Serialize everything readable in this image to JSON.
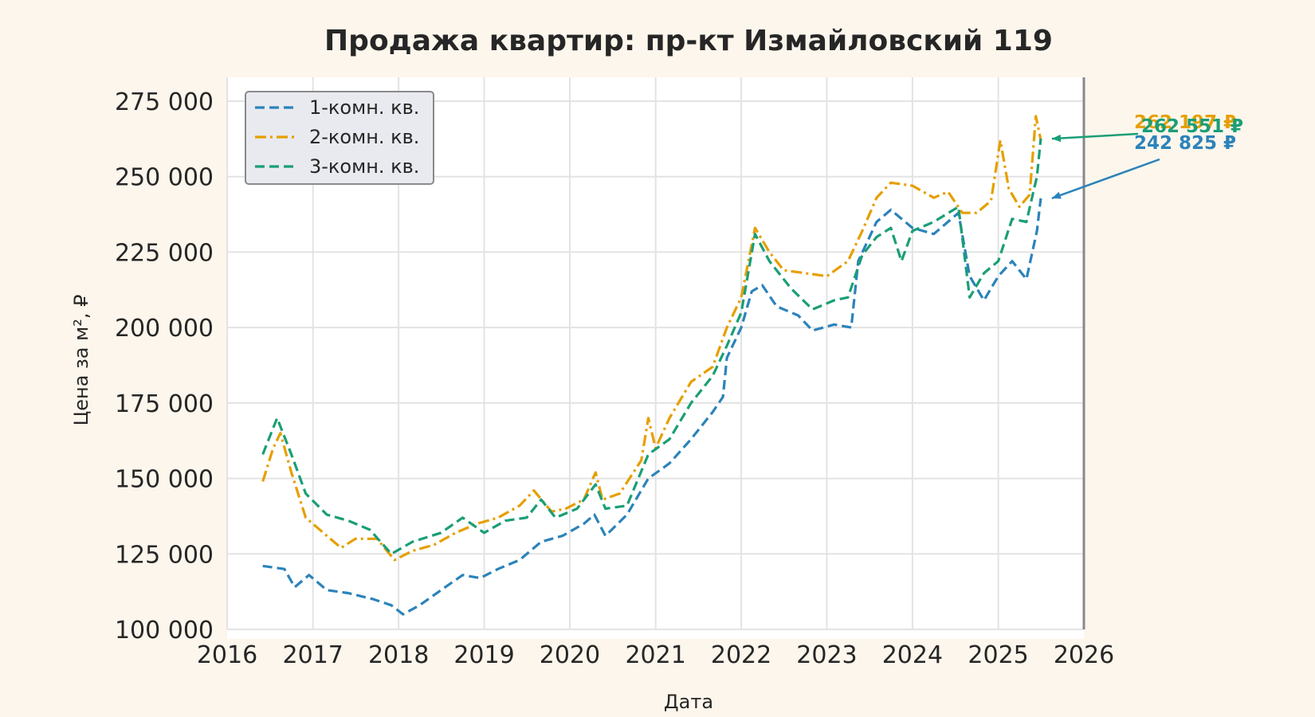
{
  "chart_data": {
    "type": "line",
    "title": "Продажа квартир: пр-кт Измайловский 119",
    "xlabel": "Дата",
    "ylabel": "Цена за м², ₽",
    "xlim": [
      "2016-01-01",
      "2026-01-01"
    ],
    "ylim": [
      100000,
      275000
    ],
    "x_ticks": [
      "2016",
      "2017",
      "2018",
      "2019",
      "2020",
      "2021",
      "2022",
      "2023",
      "2024",
      "2025",
      "2026"
    ],
    "y_ticks": [
      100000,
      125000,
      150000,
      175000,
      200000,
      225000,
      250000,
      275000
    ],
    "y_tick_labels": [
      "100 000",
      "125 000",
      "150 000",
      "175 000",
      "200 000",
      "225 000",
      "250 000",
      "275 000"
    ],
    "grid": true,
    "legend_position": "top-left",
    "series": [
      {
        "name": "1-комн. кв.",
        "color": "#2b83ba",
        "line_style": "dashed",
        "points": [
          [
            "2016-06-01",
            121000
          ],
          [
            "2016-09-01",
            120000
          ],
          [
            "2016-10-15",
            114000
          ],
          [
            "2016-12-15",
            118000
          ],
          [
            "2017-03-01",
            113000
          ],
          [
            "2017-06-01",
            112000
          ],
          [
            "2017-09-15",
            110000
          ],
          [
            "2017-12-01",
            108000
          ],
          [
            "2018-01-20",
            105000
          ],
          [
            "2018-04-01",
            108000
          ],
          [
            "2018-07-01",
            113000
          ],
          [
            "2018-10-01",
            118000
          ],
          [
            "2018-12-15",
            117000
          ],
          [
            "2019-03-01",
            120000
          ],
          [
            "2019-06-01",
            123000
          ],
          [
            "2019-09-01",
            129000
          ],
          [
            "2019-12-01",
            131000
          ],
          [
            "2020-03-01",
            135000
          ],
          [
            "2020-04-15",
            138000
          ],
          [
            "2020-06-01",
            131000
          ],
          [
            "2020-09-01",
            138000
          ],
          [
            "2020-12-01",
            150000
          ],
          [
            "2021-03-01",
            155000
          ],
          [
            "2021-06-01",
            163000
          ],
          [
            "2021-09-01",
            172000
          ],
          [
            "2021-10-15",
            177000
          ],
          [
            "2021-11-01",
            190000
          ],
          [
            "2022-01-01",
            200000
          ],
          [
            "2022-02-15",
            212000
          ],
          [
            "2022-04-01",
            214000
          ],
          [
            "2022-06-01",
            207000
          ],
          [
            "2022-09-01",
            204000
          ],
          [
            "2022-11-01",
            199000
          ],
          [
            "2023-02-01",
            201000
          ],
          [
            "2023-04-15",
            200000
          ],
          [
            "2023-05-15",
            222000
          ],
          [
            "2023-08-01",
            235000
          ],
          [
            "2023-10-01",
            239000
          ],
          [
            "2024-01-01",
            233000
          ],
          [
            "2024-04-01",
            231000
          ],
          [
            "2024-07-15",
            238000
          ],
          [
            "2024-09-01",
            217000
          ],
          [
            "2024-11-01",
            209000
          ],
          [
            "2025-01-01",
            217000
          ],
          [
            "2025-03-01",
            222000
          ],
          [
            "2025-05-01",
            216000
          ],
          [
            "2025-06-15",
            232000
          ],
          [
            "2025-07-01",
            242825
          ]
        ],
        "last_value": 242825,
        "last_value_label": "242 825 ₽"
      },
      {
        "name": "2-комн. кв.",
        "color": "#e69f00",
        "line_style": "dashdot",
        "points": [
          [
            "2016-06-01",
            149000
          ],
          [
            "2016-07-15",
            160000
          ],
          [
            "2016-08-15",
            165000
          ],
          [
            "2016-10-01",
            152000
          ],
          [
            "2016-12-01",
            137000
          ],
          [
            "2017-03-01",
            131000
          ],
          [
            "2017-05-01",
            127000
          ],
          [
            "2017-07-01",
            130000
          ],
          [
            "2017-10-01",
            130000
          ],
          [
            "2017-12-15",
            123000
          ],
          [
            "2018-03-01",
            126000
          ],
          [
            "2018-06-01",
            128000
          ],
          [
            "2018-09-01",
            132000
          ],
          [
            "2018-12-01",
            135000
          ],
          [
            "2019-03-01",
            137000
          ],
          [
            "2019-06-01",
            141000
          ],
          [
            "2019-08-01",
            146000
          ],
          [
            "2019-10-15",
            139000
          ],
          [
            "2019-12-15",
            140000
          ],
          [
            "2020-03-01",
            143000
          ],
          [
            "2020-04-20",
            152000
          ],
          [
            "2020-05-20",
            143000
          ],
          [
            "2020-08-01",
            145000
          ],
          [
            "2020-11-01",
            156000
          ],
          [
            "2020-12-01",
            170000
          ],
          [
            "2021-01-01",
            160000
          ],
          [
            "2021-03-01",
            170000
          ],
          [
            "2021-06-01",
            182000
          ],
          [
            "2021-09-01",
            187000
          ],
          [
            "2021-11-01",
            200000
          ],
          [
            "2022-01-01",
            210000
          ],
          [
            "2022-03-01",
            233000
          ],
          [
            "2022-05-01",
            225000
          ],
          [
            "2022-07-01",
            219000
          ],
          [
            "2022-10-01",
            218000
          ],
          [
            "2023-01-01",
            217000
          ],
          [
            "2023-04-01",
            222000
          ],
          [
            "2023-06-01",
            232000
          ],
          [
            "2023-08-01",
            243000
          ],
          [
            "2023-10-01",
            248000
          ],
          [
            "2024-01-01",
            247000
          ],
          [
            "2024-04-01",
            243000
          ],
          [
            "2024-06-01",
            245000
          ],
          [
            "2024-08-01",
            238000
          ],
          [
            "2024-10-01",
            238000
          ],
          [
            "2024-12-01",
            242000
          ],
          [
            "2025-01-10",
            262000
          ],
          [
            "2025-02-15",
            246000
          ],
          [
            "2025-04-01",
            240000
          ],
          [
            "2025-05-15",
            244000
          ],
          [
            "2025-06-10",
            270000
          ],
          [
            "2025-07-01",
            262197
          ]
        ],
        "last_value": 262197,
        "last_value_label": "262 197 ₽"
      },
      {
        "name": "3-комн. кв.",
        "color": "#1a9e77",
        "line_style": "dashed",
        "points": [
          [
            "2016-06-01",
            158000
          ],
          [
            "2016-08-01",
            170000
          ],
          [
            "2016-10-01",
            158000
          ],
          [
            "2016-12-01",
            145000
          ],
          [
            "2017-03-01",
            138000
          ],
          [
            "2017-06-01",
            136000
          ],
          [
            "2017-09-01",
            133000
          ],
          [
            "2017-12-01",
            125000
          ],
          [
            "2018-03-01",
            129000
          ],
          [
            "2018-07-01",
            132000
          ],
          [
            "2018-10-01",
            137000
          ],
          [
            "2019-01-01",
            132000
          ],
          [
            "2019-04-01",
            136000
          ],
          [
            "2019-07-01",
            137000
          ],
          [
            "2019-09-01",
            143000
          ],
          [
            "2019-11-01",
            137000
          ],
          [
            "2020-02-01",
            140000
          ],
          [
            "2020-04-20",
            148000
          ],
          [
            "2020-06-01",
            140000
          ],
          [
            "2020-09-01",
            141000
          ],
          [
            "2020-12-01",
            158000
          ],
          [
            "2021-03-01",
            163000
          ],
          [
            "2021-06-01",
            175000
          ],
          [
            "2021-09-01",
            184000
          ],
          [
            "2021-11-01",
            194000
          ],
          [
            "2022-01-01",
            205000
          ],
          [
            "2022-03-01",
            231000
          ],
          [
            "2022-05-01",
            222000
          ],
          [
            "2022-08-01",
            213000
          ],
          [
            "2022-11-01",
            206000
          ],
          [
            "2023-02-01",
            209000
          ],
          [
            "2023-04-01",
            210000
          ],
          [
            "2023-06-01",
            224000
          ],
          [
            "2023-08-01",
            230000
          ],
          [
            "2023-10-01",
            233000
          ],
          [
            "2023-11-15",
            222000
          ],
          [
            "2024-01-01",
            232000
          ],
          [
            "2024-04-01",
            235000
          ],
          [
            "2024-07-15",
            240000
          ],
          [
            "2024-09-01",
            210000
          ],
          [
            "2024-11-01",
            218000
          ],
          [
            "2025-01-01",
            222000
          ],
          [
            "2025-03-01",
            236000
          ],
          [
            "2025-05-01",
            235000
          ],
          [
            "2025-06-15",
            250000
          ],
          [
            "2025-07-01",
            262551
          ]
        ],
        "last_value": 262551,
        "last_value_label": "262 551 ₽"
      }
    ]
  }
}
